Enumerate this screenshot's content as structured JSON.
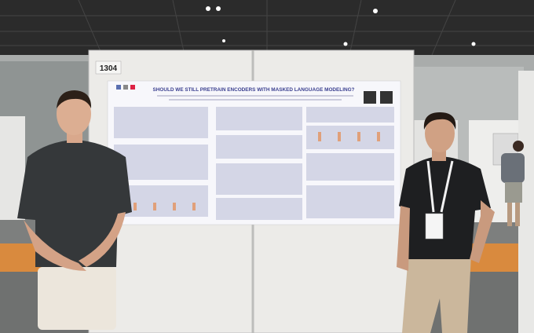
{
  "board_number": "1304",
  "poster": {
    "title": "SHOULD WE STILL PRETRAIN ENCODERS WITH MASKED LANGUAGE MODELING?"
  }
}
